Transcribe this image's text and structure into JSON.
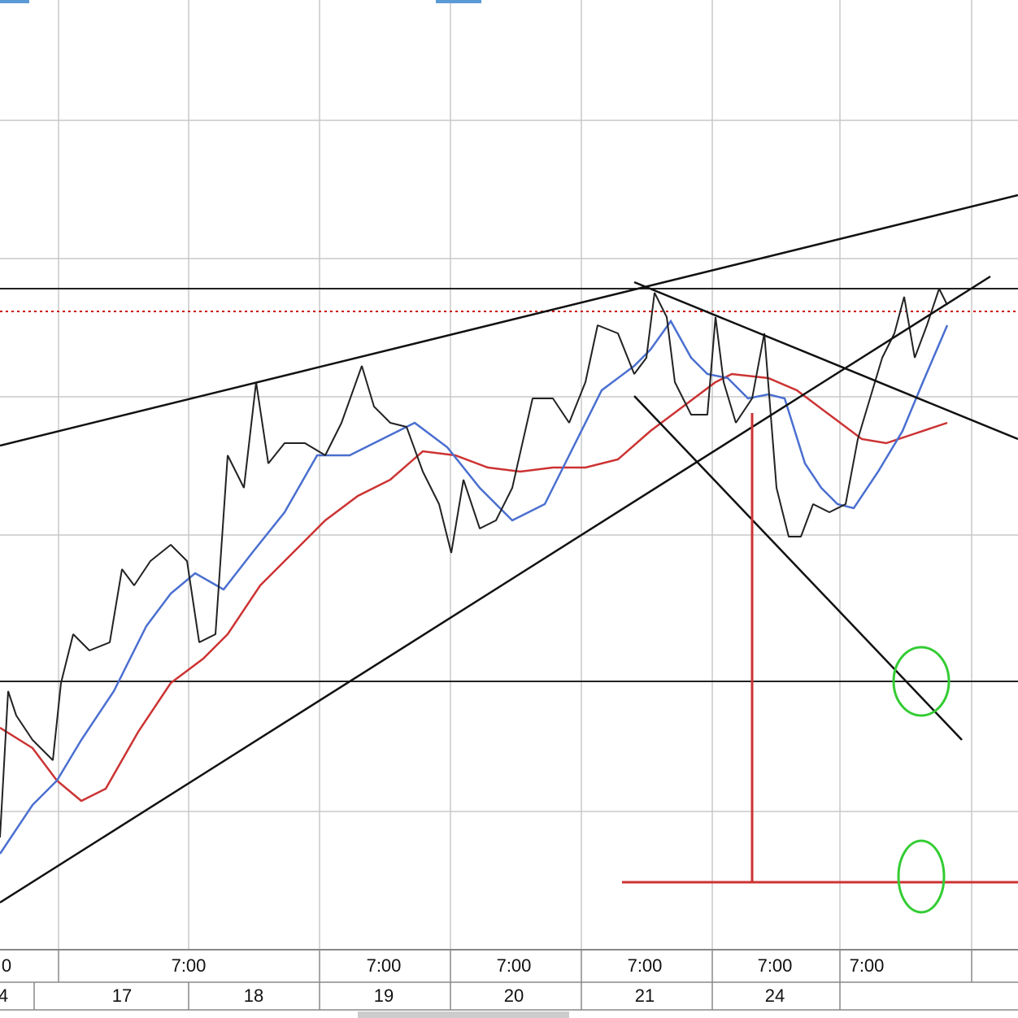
{
  "time_axis": {
    "time_labels": [
      "0",
      "7:00",
      "7:00",
      "7:00",
      "7:00",
      "7:00",
      "7:00"
    ],
    "date_labels": [
      "4",
      "17",
      "18",
      "19",
      "20",
      "21",
      "24"
    ]
  }
}
